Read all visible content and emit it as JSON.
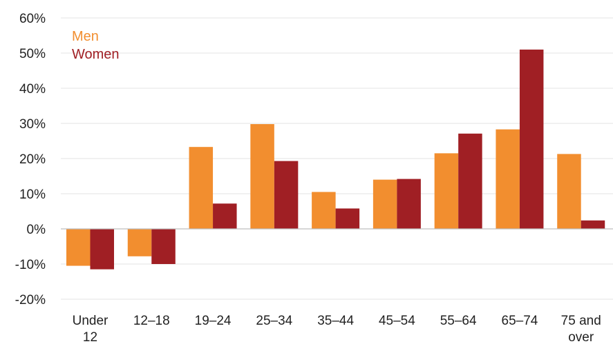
{
  "chart_data": {
    "type": "bar",
    "title": "",
    "xlabel": "",
    "ylabel": "",
    "categories": [
      [
        "Under",
        "12"
      ],
      [
        "12–18"
      ],
      [
        "19–24"
      ],
      [
        "25–34"
      ],
      [
        "35–44"
      ],
      [
        "45–54"
      ],
      [
        "55–64"
      ],
      [
        "65–74"
      ],
      [
        "75 and",
        "over"
      ]
    ],
    "series": [
      {
        "name": "Men",
        "color": "#f28e2f",
        "values": [
          -10.5,
          -7.8,
          23.3,
          29.8,
          10.5,
          14.0,
          21.5,
          28.3,
          21.3
        ]
      },
      {
        "name": "Women",
        "color": "#a01f24",
        "values": [
          -11.5,
          -10.0,
          7.2,
          19.3,
          5.8,
          14.2,
          27.1,
          51.0,
          2.4
        ]
      }
    ],
    "ylim": [
      -20,
      60
    ],
    "yticks": [
      60,
      50,
      40,
      30,
      20,
      10,
      0,
      -10,
      -20
    ],
    "ytick_labels": [
      "60%",
      "50%",
      "40%",
      "30%",
      "20%",
      "10%",
      "0%",
      "-10%",
      "-20%"
    ],
    "grid": true,
    "legend": "top-left"
  }
}
